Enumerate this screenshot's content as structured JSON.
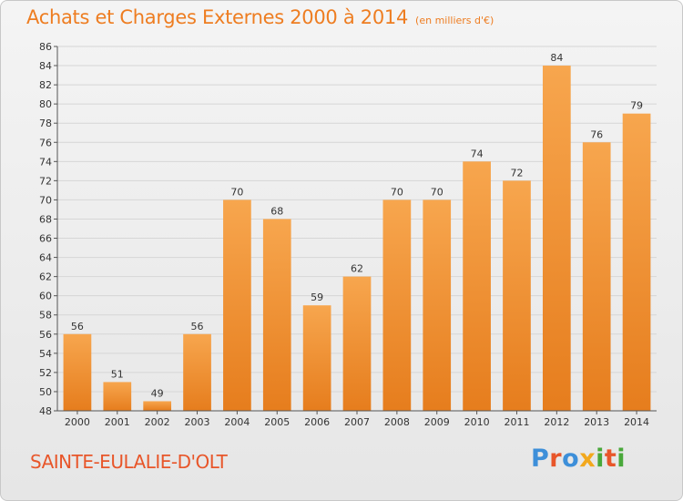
{
  "header": {
    "title": "Achats et Charges Externes 2000 à 2014",
    "subtitle": "(en milliers d'€)"
  },
  "footer": {
    "place": "SAINTE-EULALIE-D'OLT",
    "logo_text": "Proxiti",
    "logo_colors": [
      "#3d8fd9",
      "#e8562a",
      "#3d8fd9",
      "#f2a81d",
      "#49a83a",
      "#e8562a",
      "#49a83a"
    ]
  },
  "colors": {
    "bar_top": "#f7a64e",
    "bar_bottom": "#e67d1d",
    "grid": "#d6d6d6",
    "axis": "#555555"
  },
  "chart_data": {
    "type": "bar",
    "categories": [
      "2000",
      "2001",
      "2002",
      "2003",
      "2004",
      "2005",
      "2006",
      "2007",
      "2008",
      "2009",
      "2010",
      "2011",
      "2012",
      "2013",
      "2014"
    ],
    "values": [
      56,
      51,
      49,
      56,
      70,
      68,
      59,
      62,
      70,
      70,
      74,
      72,
      84,
      76,
      79
    ],
    "ylim": [
      48,
      86
    ],
    "ytick_step": 2,
    "grid": true,
    "data_labels": true
  }
}
